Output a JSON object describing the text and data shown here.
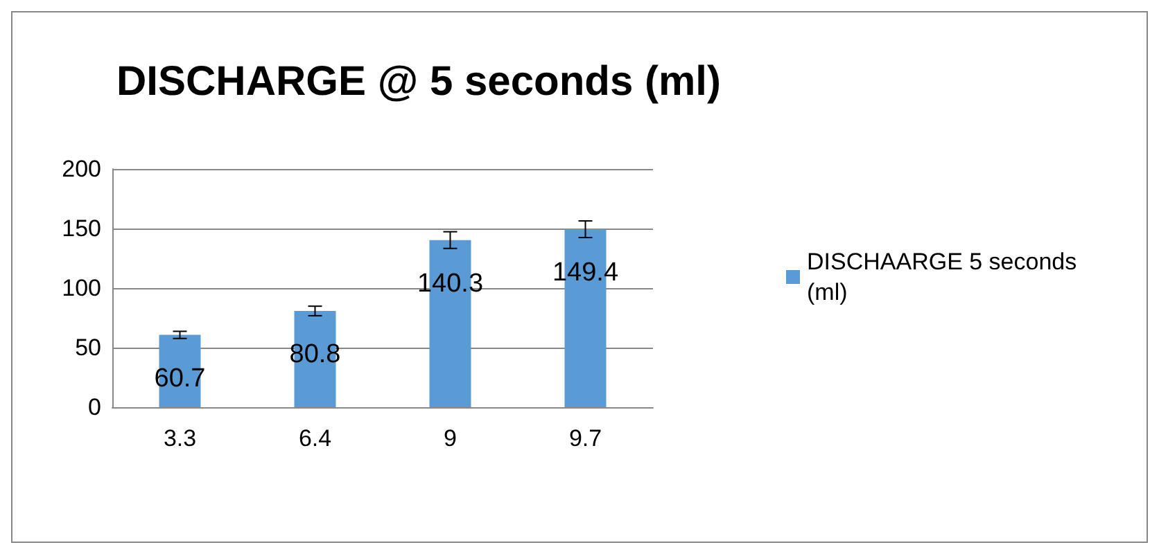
{
  "chart_data": {
    "type": "bar",
    "title": "DISCHARGE @ 5 seconds (ml)",
    "categories": [
      "3.3",
      "6.4",
      "9",
      "9.7"
    ],
    "series": [
      {
        "name": "DISCHAARGE 5 seconds (ml)",
        "color": "#5b9bd5",
        "values": [
          60.7,
          80.8,
          140.3,
          149.4
        ],
        "errors": [
          3,
          4,
          7,
          7
        ]
      }
    ],
    "ylim": [
      0,
      200
    ],
    "yticks": [
      0,
      50,
      100,
      150,
      200
    ],
    "grid": "y",
    "legend": "right",
    "data_labels": true
  }
}
